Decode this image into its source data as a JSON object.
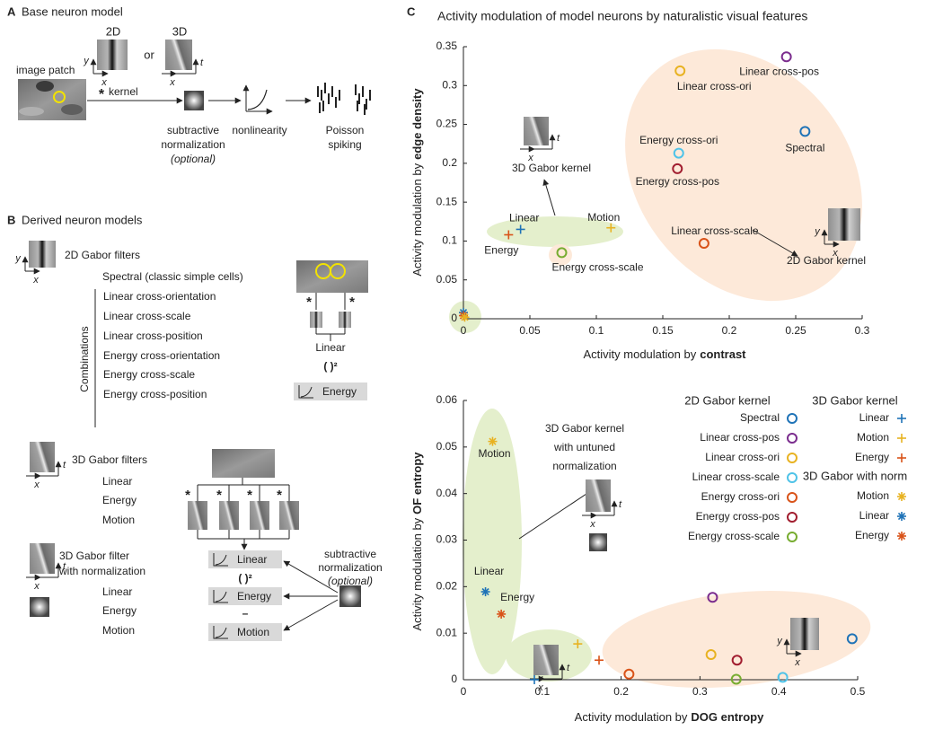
{
  "axis_labels": {
    "x": "x",
    "y": "y",
    "t": "t"
  },
  "panel_a": {
    "letter": "A",
    "title": "Base neuron model",
    "kernel_2d": "2D",
    "or": "or",
    "kernel_3d": "3D",
    "image_patch": "image patch",
    "convolve": "*",
    "kernel": "kernel",
    "normalization": [
      "subtractive",
      "normalization"
    ],
    "optional": "(optional)",
    "nonlinearity": "nonlinearity",
    "spiking": [
      "Poisson",
      "spiking"
    ]
  },
  "panel_b": {
    "letter": "B",
    "title": "Derived neuron models",
    "gabor_2d": "2D Gabor filters",
    "spectral": "Spectral (classic simple cells)",
    "combinations_label": "Combinations",
    "combinations": [
      "Linear cross-orientation",
      "Linear cross-scale",
      "Linear cross-position",
      "Energy cross-orientation",
      "Energy cross-scale",
      "Energy cross-position"
    ],
    "convolve": "*",
    "linear": "Linear",
    "square": "( )²",
    "energy": "Energy",
    "motion": "Motion",
    "minus": "–",
    "gabor_3d": "3D Gabor filters",
    "gabor_3d_models": [
      "Linear",
      "Energy",
      "Motion"
    ],
    "gabor_3d_norm": [
      "3D Gabor filter",
      "with normalization"
    ],
    "gabor_3d_norm_models": [
      "Linear",
      "Energy",
      "Motion"
    ],
    "normalization": [
      "subtractive",
      "normalization"
    ],
    "optional": "(optional)"
  },
  "panel_c": {
    "letter": "C"
  },
  "chart_data": [
    {
      "type": "scatter",
      "title": "Activity modulation of model neurons by naturalistic visual features",
      "xlabel": "Activity modulation by",
      "xlabel_emphasis": "contrast",
      "ylabel": "Activity modulation by",
      "ylabel_emphasis": "edge density",
      "xlim": [
        0,
        0.3
      ],
      "ylim": [
        0,
        0.35
      ],
      "xticks": [
        0,
        0.05,
        0.1,
        0.15,
        0.2,
        0.25,
        0.3
      ],
      "yticks": [
        0,
        0.05,
        0.1,
        0.15,
        0.2,
        0.25,
        0.3,
        0.35
      ],
      "annotations": [
        "3D Gabor kernel",
        "2D Gabor kernel"
      ],
      "series": [
        {
          "name": "Linear cross-pos",
          "color": "#7b2d8e",
          "marker": "o",
          "x": [
            0.243
          ],
          "values": [
            0.337
          ]
        },
        {
          "name": "Linear cross-ori",
          "color": "#e8b221",
          "marker": "o",
          "x": [
            0.163
          ],
          "values": [
            0.319
          ]
        },
        {
          "name": "Spectral",
          "color": "#1f73b7",
          "marker": "o",
          "x": [
            0.257
          ],
          "values": [
            0.241
          ]
        },
        {
          "name": "Energy cross-ori",
          "color": "#4fc3e8",
          "marker": "o",
          "x": [
            0.162
          ],
          "values": [
            0.213
          ]
        },
        {
          "name": "Energy cross-pos",
          "color": "#a11d2f",
          "marker": "o",
          "x": [
            0.161
          ],
          "values": [
            0.193
          ]
        },
        {
          "name": "Linear cross-scale",
          "color": "#d95319",
          "marker": "o",
          "x": [
            0.181
          ],
          "values": [
            0.097
          ]
        },
        {
          "name": "Energy cross-scale",
          "color": "#77ac30",
          "marker": "o",
          "x": [
            0.074
          ],
          "values": [
            0.085
          ]
        },
        {
          "name": "Linear",
          "color": "#1f73b7",
          "marker": "+",
          "x": [
            0.043
          ],
          "values": [
            0.115
          ]
        },
        {
          "name": "Energy",
          "color": "#d95319",
          "marker": "+",
          "x": [
            0.034
          ],
          "values": [
            0.108
          ]
        },
        {
          "name": "Motion",
          "color": "#e8b221",
          "marker": "+",
          "x": [
            0.111
          ],
          "values": [
            0.117
          ]
        },
        {
          "color": "#1f73b7",
          "marker": "*",
          "x": [
            0
          ],
          "values": [
            0.008
          ]
        },
        {
          "color": "#d95319",
          "marker": "*",
          "x": [
            0
          ],
          "values": [
            0.004
          ]
        },
        {
          "color": "#e8b221",
          "marker": "*",
          "x": [
            0.001
          ],
          "values": [
            0.002
          ]
        }
      ]
    },
    {
      "type": "scatter",
      "xlabel": "Activity modulation by",
      "xlabel_emphasis": "DOG entropy",
      "ylabel": "Activity modulation by",
      "ylabel_emphasis": "OF entropy",
      "xlim": [
        0,
        0.5
      ],
      "ylim": [
        0,
        0.06
      ],
      "xticks": [
        0,
        0.1,
        0.2,
        0.3,
        0.4,
        0.5
      ],
      "yticks": [
        0,
        0.01,
        0.02,
        0.03,
        0.04,
        0.05,
        0.06
      ],
      "annotations": [
        "3D Gabor kernel",
        "with untuned",
        "normalization"
      ],
      "legend_groups": [
        "2D Gabor kernel",
        "3D Gabor kernel",
        "3D Gabor with norm"
      ],
      "series": [
        {
          "name": "Spectral",
          "group": 0,
          "color": "#1f73b7",
          "marker": "o",
          "x": [
            0.493
          ],
          "values": [
            0.0088
          ]
        },
        {
          "name": "Linear cross-pos",
          "group": 0,
          "color": "#7b2d8e",
          "marker": "o",
          "x": [
            0.316
          ],
          "values": [
            0.0177
          ]
        },
        {
          "name": "Linear cross-ori",
          "group": 0,
          "color": "#e8b221",
          "marker": "o",
          "x": [
            0.314
          ],
          "values": [
            0.0054
          ]
        },
        {
          "name": "Linear cross-scale",
          "group": 0,
          "color": "#4fc3e8",
          "marker": "o",
          "x": [
            0.405
          ],
          "values": [
            0.0005
          ]
        },
        {
          "name": "Energy cross-ori",
          "group": 0,
          "color": "#d95319",
          "marker": "o",
          "x": [
            0.21
          ],
          "values": [
            0.0012
          ]
        },
        {
          "name": "Energy cross-pos",
          "group": 0,
          "color": "#a11d2f",
          "marker": "o",
          "x": [
            0.347
          ],
          "values": [
            0.0042
          ]
        },
        {
          "name": "Energy cross-scale",
          "group": 0,
          "color": "#77ac30",
          "marker": "o",
          "x": [
            0.346
          ],
          "values": [
            0.0001
          ]
        },
        {
          "name": "Linear",
          "group": 1,
          "color": "#1f73b7",
          "marker": "+",
          "x": [
            0.09
          ],
          "values": [
            0
          ]
        },
        {
          "name": "Motion",
          "group": 1,
          "color": "#e8b221",
          "marker": "+",
          "x": [
            0.145
          ],
          "values": [
            0.0077
          ]
        },
        {
          "name": "Energy",
          "group": 1,
          "color": "#d95319",
          "marker": "+",
          "x": [
            0.172
          ],
          "values": [
            0.0042
          ]
        },
        {
          "name": "Motion",
          "group": 2,
          "color": "#e8b221",
          "marker": "*",
          "x": [
            0.037
          ],
          "values": [
            0.0512
          ]
        },
        {
          "name": "Linear",
          "group": 2,
          "color": "#1f73b7",
          "marker": "*",
          "x": [
            0.028
          ],
          "values": [
            0.0189
          ]
        },
        {
          "name": "Energy",
          "group": 2,
          "color": "#d95319",
          "marker": "*",
          "x": [
            0.048
          ],
          "values": [
            0.0141
          ]
        }
      ]
    }
  ]
}
